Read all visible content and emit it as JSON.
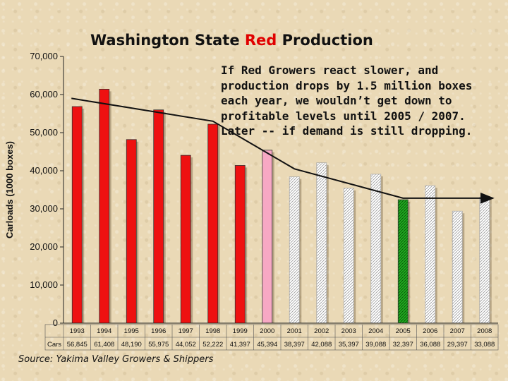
{
  "chart_data": {
    "type": "bar",
    "title": {
      "part1": "Washington State ",
      "part2": "Red",
      "part3": " Production"
    },
    "ylabel": "Carloads (1000 boxes)",
    "ylim": [
      0,
      70000
    ],
    "yticks": [
      "0",
      "10,000",
      "20,000",
      "30,000",
      "40,000",
      "50,000",
      "60,000",
      "70,000"
    ],
    "categories": [
      "1993",
      "1994",
      "1995",
      "1996",
      "1997",
      "1998",
      "1999",
      "2000",
      "2001",
      "2002",
      "2003",
      "2004",
      "2005",
      "2006",
      "2007",
      "2008"
    ],
    "values": [
      56845,
      61408,
      48190,
      55975,
      44052,
      52222,
      41397,
      45394,
      38397,
      42088,
      35397,
      39088,
      32397,
      36088,
      29397,
      33088
    ],
    "value_labels": [
      "56,845",
      "61,408",
      "48,190",
      "55,975",
      "44,052",
      "52,222",
      "41,397",
      "45,394",
      "38,397",
      "42,088",
      "35,397",
      "39,088",
      "32,397",
      "36,088",
      "29,397",
      "33,088"
    ],
    "table_row_label": "Cars",
    "bar_styles": [
      "actual",
      "actual",
      "actual",
      "actual",
      "actual",
      "actual",
      "actual",
      "current",
      "projected",
      "projected",
      "projected",
      "projected",
      "highlight",
      "projected",
      "projected",
      "projected"
    ],
    "colors": {
      "actual": "#ee1111",
      "current": "#f7a8c4",
      "projected": "#ffffff",
      "highlight": "#119911"
    },
    "trend_line": {
      "x": [
        "1993",
        "1998",
        "2001",
        "2005",
        "2008"
      ],
      "y": [
        59000,
        53000,
        40500,
        32800,
        32800
      ],
      "end_arrow": true
    },
    "grid": false,
    "legend": "none"
  },
  "annotation": "If Red Growers react slower, and\nproduction drops by 1.5 million boxes\neach year, we wouldn’t get down to\nprofitable levels until 2005 / 2007.\nLater -- if demand is still dropping.",
  "source": "Source: Yakima Valley Growers & Shippers"
}
